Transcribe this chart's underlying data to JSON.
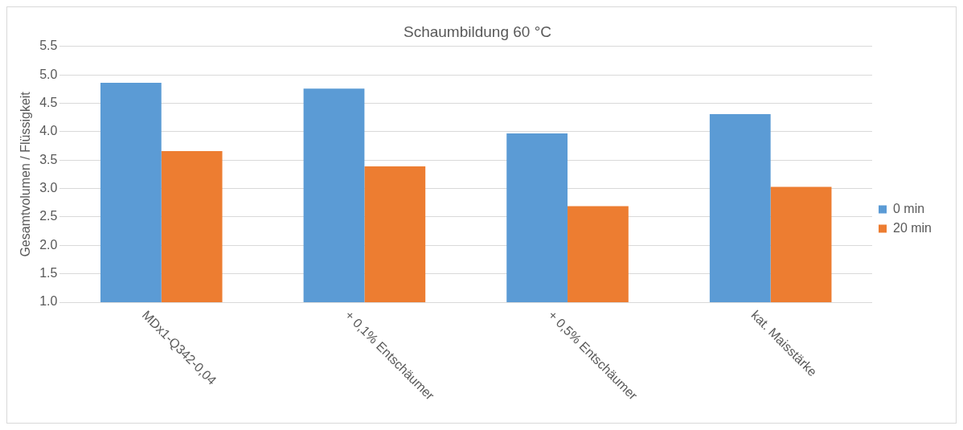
{
  "chart_data": {
    "type": "bar",
    "title": "Schaumbildung 60 °C",
    "ylabel": "Gesamtvolumen / Flüssigkeit",
    "categories": [
      "MDx1-Q342-0,04",
      "+ 0,1% Entschäumer",
      "+ 0,5% Entschäumer",
      "kat. Maisstärke"
    ],
    "series": [
      {
        "name": "0 min",
        "color": "#5b9bd5",
        "values": [
          4.86,
          4.76,
          3.97,
          4.31
        ]
      },
      {
        "name": "20 min",
        "color": "#ed7d31",
        "values": [
          3.66,
          3.39,
          2.69,
          3.03
        ]
      }
    ],
    "ylim": [
      1.0,
      5.5
    ],
    "yticks": [
      {
        "value": 1.0,
        "label": "1.0"
      },
      {
        "value": 1.5,
        "label": "1.5"
      },
      {
        "value": 2.0,
        "label": "2.0"
      },
      {
        "value": 2.5,
        "label": "2.5"
      },
      {
        "value": 3.0,
        "label": "3.0"
      },
      {
        "value": 3.5,
        "label": "3.5"
      },
      {
        "value": 4.0,
        "label": "4.0"
      },
      {
        "value": 4.5,
        "label": "4.5"
      },
      {
        "value": 5.0,
        "label": "5.0"
      },
      {
        "value": 5.5,
        "label": "5.5"
      }
    ],
    "grid": "y",
    "legend": "right"
  }
}
